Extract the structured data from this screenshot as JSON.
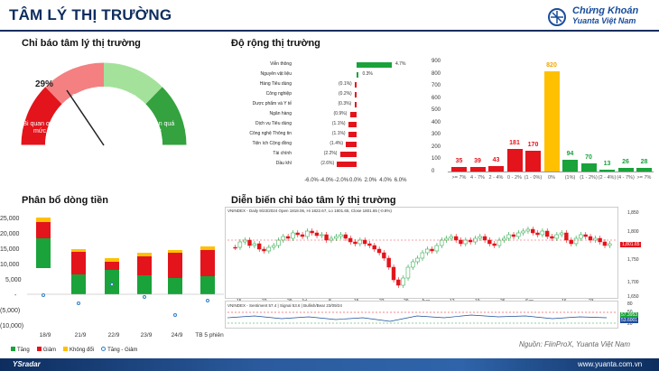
{
  "header": {
    "title": "TÂM LÝ THỊ TRƯỜNG",
    "brand_line1": "Chứng Khoán",
    "brand_line2": "Yuanta Việt Nam"
  },
  "gauge": {
    "section_title": "Chỉ báo tâm lý thị trường",
    "value_label": "29%",
    "value": 29,
    "zones": [
      {
        "label": "Bi quan quá mức",
        "color": "#e3141b"
      },
      {
        "label": "Bi quan",
        "color": "#f48082"
      },
      {
        "label": "Lạc quan",
        "color": "#a4e29b"
      },
      {
        "label": "Lạc quan quá mức",
        "color": "#34a23e"
      }
    ]
  },
  "breadth": {
    "section_title": "Độ rộng thị trường",
    "sectors": [
      {
        "name": "Viễn thông",
        "value": 4.7,
        "label": "4.7%"
      },
      {
        "name": "Nguyên vật liệu",
        "value": 0.3,
        "label": "0.3%"
      },
      {
        "name": "Hàng Tiêu dùng",
        "value": -0.1,
        "label": "(0.1%)"
      },
      {
        "name": "Công nghiệp",
        "value": -0.2,
        "label": "(0.2%)"
      },
      {
        "name": "Dược phẩm và Y tế",
        "value": -0.3,
        "label": "(0.3%)"
      },
      {
        "name": "Ngân hàng",
        "value": -0.9,
        "label": "(0.9%)"
      },
      {
        "name": "Dịch vụ Tiêu dùng",
        "value": -1.1,
        "label": "(1.1%)"
      },
      {
        "name": "Công nghệ Thông tin",
        "value": -1.1,
        "label": "(1.1%)"
      },
      {
        "name": "Tiện ích Cộng đồng",
        "value": -1.4,
        "label": "(1.4%)"
      },
      {
        "name": "Tài chính",
        "value": -2.2,
        "label": "(2.2%)"
      },
      {
        "name": "Dầu khí",
        "value": -2.6,
        "label": "(2.6%)"
      }
    ],
    "x_ticks": [
      "-6.0%",
      "-4.0%",
      "-2.0%",
      "0.0%",
      "2.0%",
      "4.0%",
      "6.0%"
    ]
  },
  "histogram": {
    "y_ticks": [
      "900",
      "800",
      "700",
      "600",
      "500",
      "400",
      "300",
      "200",
      "100",
      "0"
    ],
    "bars": [
      {
        "value": 35,
        "cat": ">= 7%",
        "color": "#e3141b"
      },
      {
        "value": 39,
        "cat": "4 - 7%",
        "color": "#e3141b"
      },
      {
        "value": 43,
        "cat": "2 - 4%",
        "color": "#e3141b"
      },
      {
        "value": 181,
        "cat": "0 - 2%",
        "color": "#e3141b"
      },
      {
        "value": 170,
        "cat": "(1 - 0%)",
        "color": "#e3141b"
      },
      {
        "value": 820,
        "cat": "0%",
        "color": "#ffc000"
      },
      {
        "value": 94,
        "cat": "(1%)",
        "color": "#1aa23b"
      },
      {
        "value": 70,
        "cat": "(1 - 2%)",
        "color": "#1aa23b"
      },
      {
        "value": 13,
        "cat": "(2 - 4%)",
        "color": "#1aa23b"
      },
      {
        "value": 26,
        "cat": "(4 - 7%)",
        "color": "#1aa23b"
      },
      {
        "value": 28,
        "cat": ">= 7%",
        "color": "#1aa23b"
      }
    ]
  },
  "money_flow": {
    "section_title": "Phân bổ dòng tiền",
    "y_ticks": [
      "25,000",
      "20,000",
      "15,000",
      "10,000",
      "5,000",
      "-",
      "(5,000)",
      "(10,000)"
    ],
    "categories": [
      "18/9",
      "21/9",
      "22/9",
      "23/9",
      "24/9",
      "TB 5 phiên"
    ],
    "legend": [
      "Tăng",
      "Giảm",
      "Không đổi",
      "Tăng - Giảm"
    ]
  },
  "candles": {
    "section_title": "Diễn biến chỉ báo tâm lý thị trường",
    "header": "VNINDEX - Daily 9/23/2024 Open 1818.06, Hi 1822.67, Lo 1801.65, Close 1801.65 (-0.8%)",
    "sub_header": "VNINDEX - Sentiment 57.4 | Signal 53.6 | Bullish/Bear 23/09/24",
    "price_ticks": [
      "1,850",
      "1,800",
      "1,750",
      "1,700",
      "1,650"
    ],
    "last_price": "1,801.65",
    "x_labels": [
      "15",
      "22",
      "29",
      "Jul",
      "8",
      "15",
      "22",
      "29",
      "Aug",
      "12",
      "19",
      "26",
      "Sep",
      "16",
      "23"
    ],
    "sub_ticks": [
      "80",
      "50",
      "20"
    ],
    "sub_values": [
      "57.3953",
      "53.6001"
    ],
    "source": "Nguồn: FiinProX, Yuanta Việt Nam"
  },
  "footer": {
    "left": "YSradar",
    "right": "www.yuanta.com.vn"
  }
}
